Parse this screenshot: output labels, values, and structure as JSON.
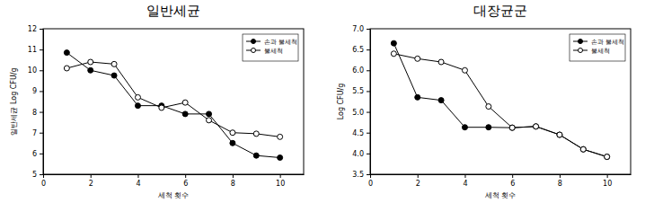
{
  "chart_data": [
    {
      "type": "line",
      "title": "일반세균",
      "x_label": "세척 횟수",
      "y_label": "일반세균 Log CFU/g",
      "x": [
        1,
        2,
        3,
        4,
        5,
        6,
        7,
        8,
        9,
        10
      ],
      "series": [
        {
          "name": "손과 물세척",
          "color": "#000000",
          "marker": "filled-circle",
          "values": [
            10.85,
            10.0,
            9.75,
            8.3,
            8.3,
            7.9,
            7.9,
            6.5,
            5.9,
            5.8
          ]
        },
        {
          "name": "물세척",
          "color": "#000000",
          "marker": "open-circle",
          "values": [
            10.1,
            10.4,
            10.3,
            8.7,
            8.2,
            8.45,
            7.6,
            7.0,
            6.95,
            6.8
          ]
        }
      ],
      "xlim": [
        0,
        11
      ],
      "xticks": [
        0,
        2,
        4,
        6,
        8,
        10
      ],
      "ylim": [
        5,
        12
      ],
      "yticks": [
        5,
        6,
        7,
        8,
        9,
        10,
        11,
        12
      ],
      "legend": "upper-right"
    },
    {
      "type": "line",
      "title": "대장균군",
      "x_label": "세척 횟수",
      "y_label": "Log CFU/g",
      "x": [
        1,
        2,
        3,
        4,
        5,
        6,
        7,
        8,
        9,
        10
      ],
      "series": [
        {
          "name": "손과 물세척",
          "color": "#000000",
          "marker": "filled-circle",
          "values": [
            6.65,
            5.35,
            5.28,
            4.63,
            4.63,
            4.62,
            4.65,
            4.45,
            4.1,
            3.92
          ]
        },
        {
          "name": "물세척",
          "color": "#000000",
          "marker": "open-circle",
          "values": [
            6.4,
            6.28,
            6.2,
            6.0,
            5.13,
            4.62,
            4.65,
            4.45,
            4.1,
            3.92
          ]
        }
      ],
      "xlim": [
        0,
        11
      ],
      "xticks": [
        0,
        2,
        4,
        6,
        8,
        10
      ],
      "ylim": [
        3.5,
        7.0
      ],
      "yticks": [
        3.5,
        {
          "value": 4.0,
          "label": "4.0"
        },
        4.5,
        {
          "value": 5.0,
          "label": "5.0"
        },
        5.5,
        {
          "value": 6.0,
          "label": "6.0"
        },
        6.5,
        {
          "value": 7.0,
          "label": "7.0"
        }
      ],
      "legend": "upper-right"
    }
  ]
}
